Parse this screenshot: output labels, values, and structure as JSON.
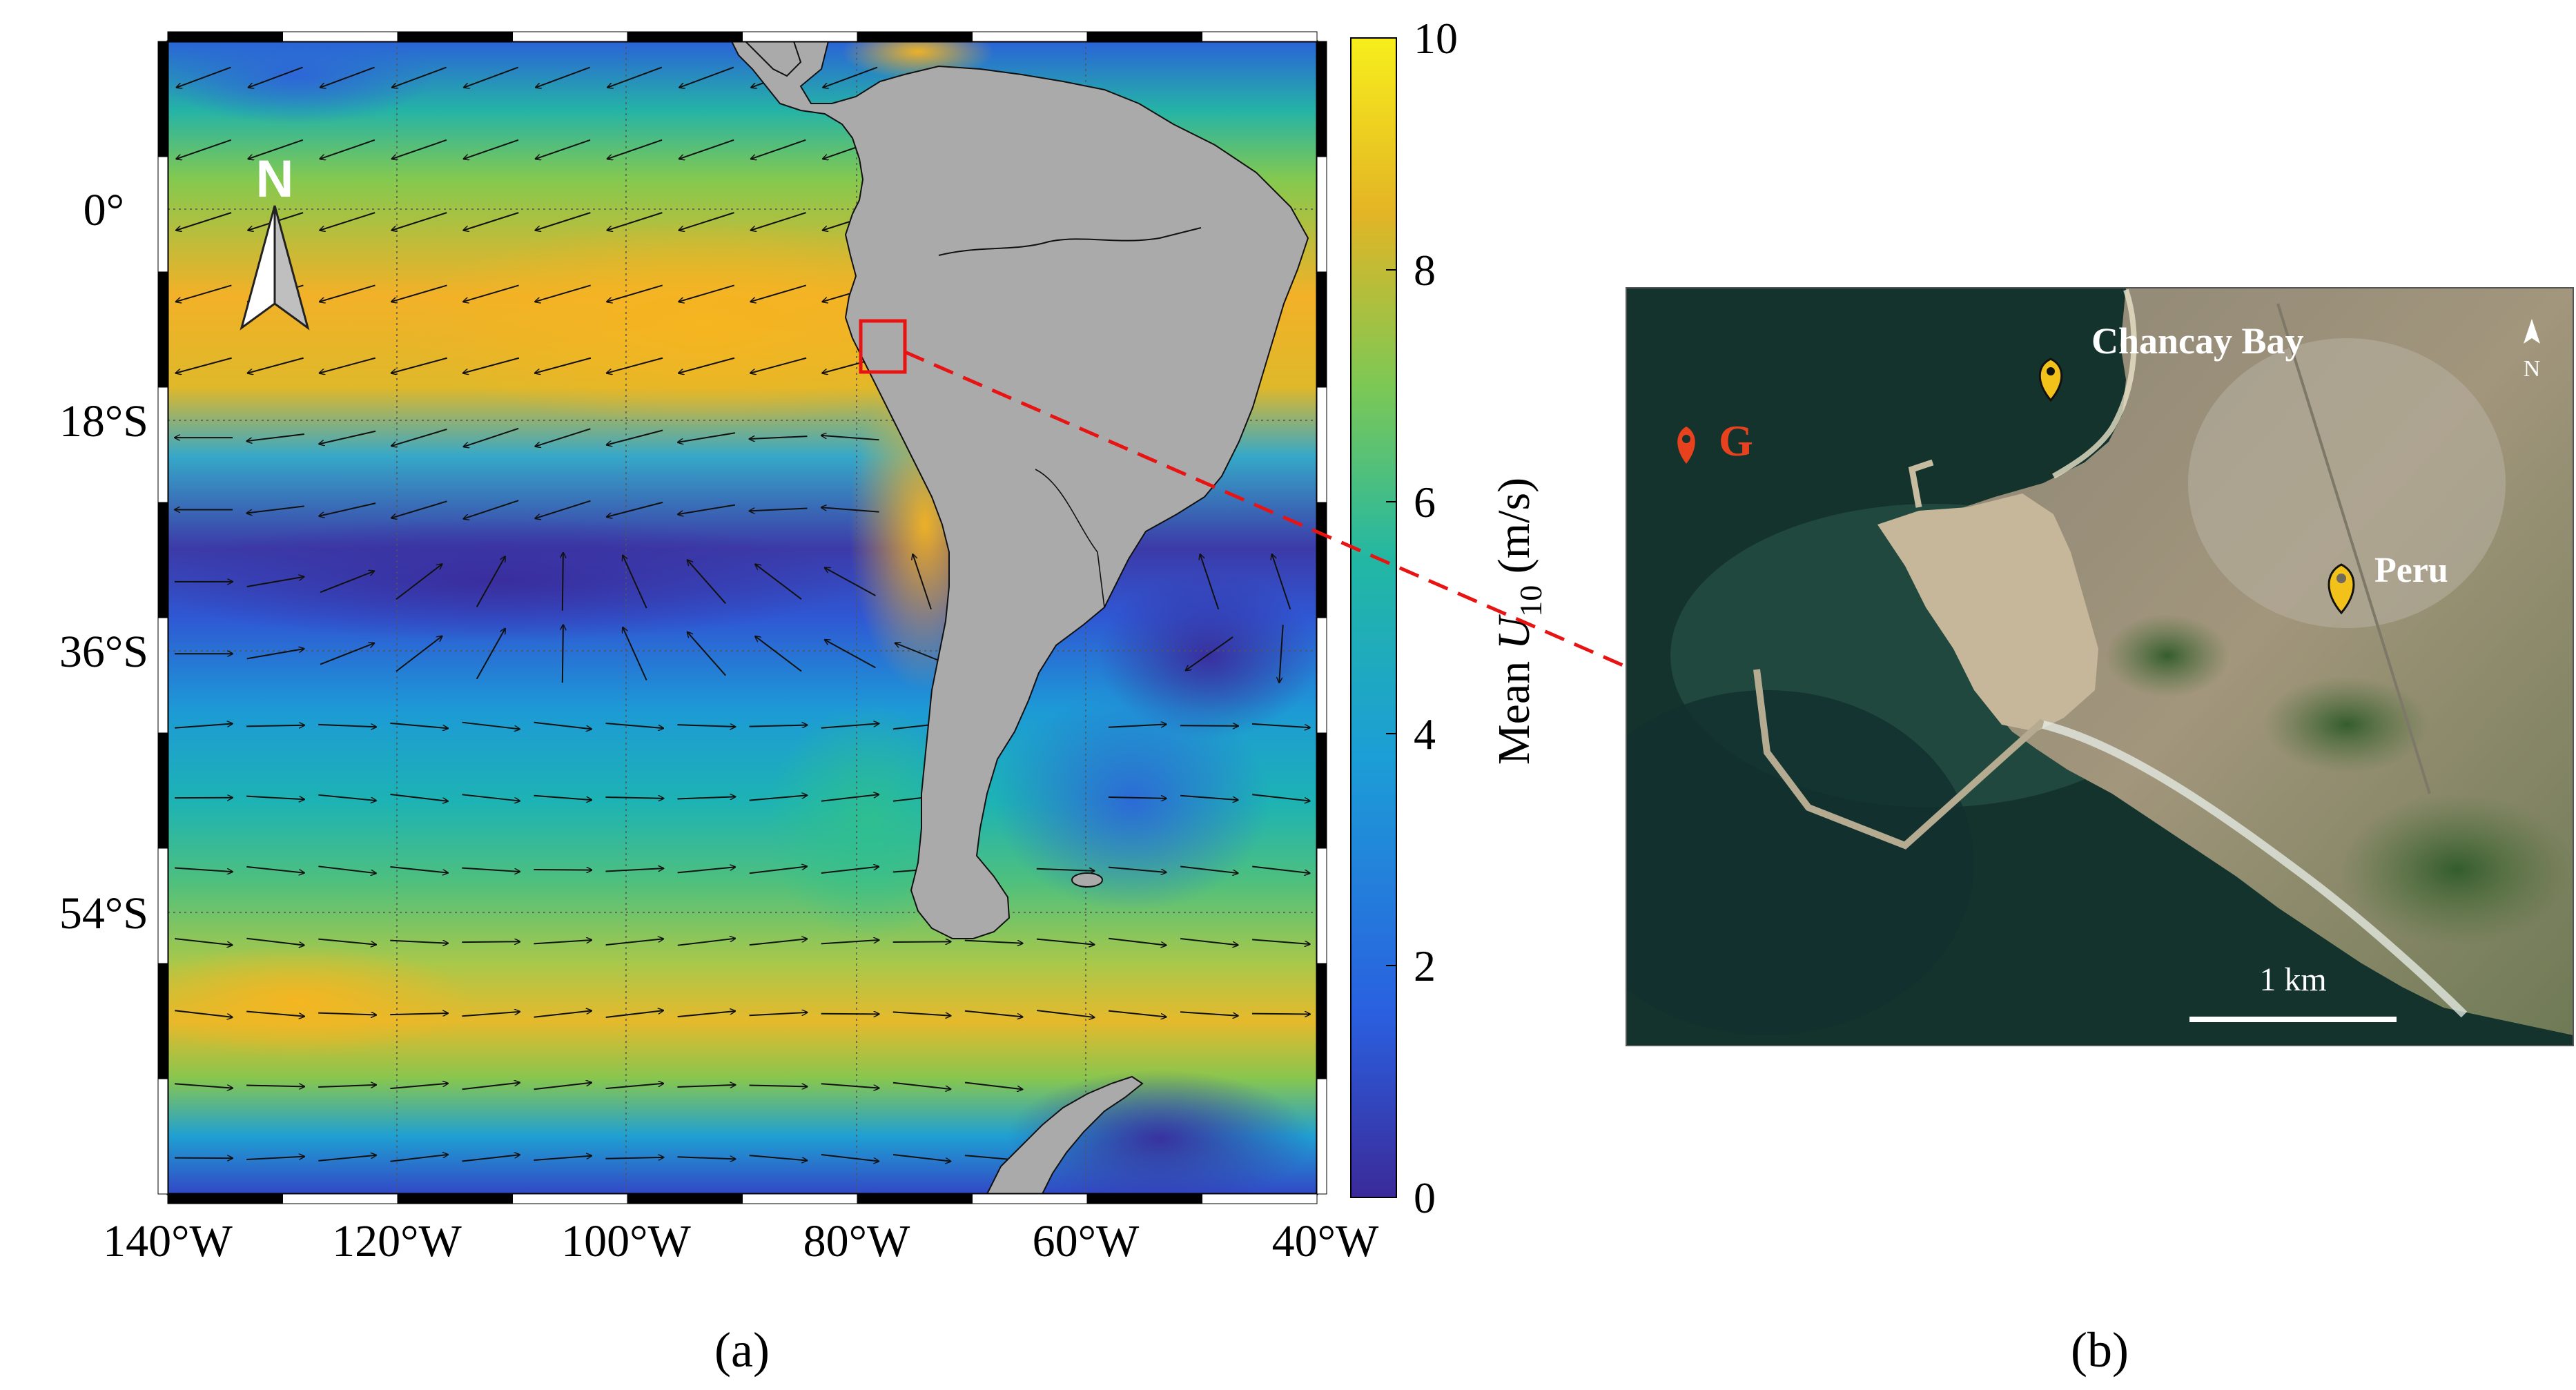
{
  "panel_a": {
    "caption": "(a)",
    "north_label": "N",
    "lat_labels": [
      "0°",
      "18°S",
      "36°S",
      "54°S"
    ],
    "lon_labels": [
      "140°W",
      "120°W",
      "100°W",
      "80°W",
      "60°W",
      "40°W"
    ],
    "colorbar": {
      "ticks": [
        "0",
        "2",
        "4",
        "6",
        "8",
        "10"
      ],
      "label_prefix": "Mean ",
      "label_var": "U",
      "label_sub": "10",
      "label_unit": " (m/s)",
      "range": [
        0,
        10
      ],
      "colors": [
        "#3b2a99",
        "#2a60e0",
        "#1c9ed6",
        "#22b7a4",
        "#7dc855",
        "#e3b525",
        "#f7ee1c"
      ]
    },
    "land_color": "#aaaaaa",
    "highlight_box_color": "#e81414"
  },
  "panel_b": {
    "caption": "(b)",
    "labels": {
      "chancay": "Chancay Bay",
      "peru": "Peru",
      "g": "G",
      "scale": "1 km",
      "north": "N"
    },
    "colors": {
      "marker_yellow": "#f2c21b",
      "marker_red": "#e8411e",
      "sea": "#14332d"
    }
  },
  "connector": {
    "color": "#e81414",
    "style": "dashed"
  }
}
